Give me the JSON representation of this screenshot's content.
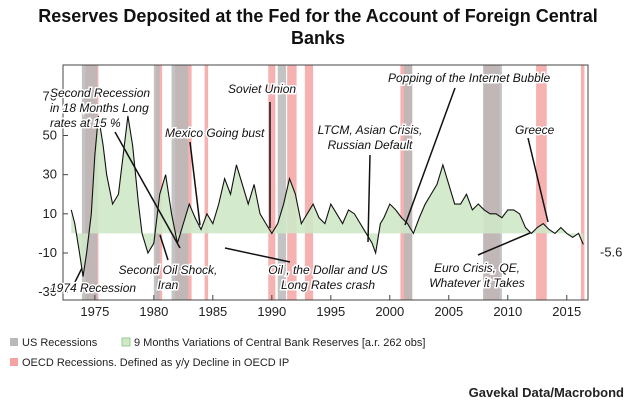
{
  "chart_data": {
    "type": "line",
    "title": [
      "Reserves Deposited at the Fed for the Account of Foreign Central",
      "Banks"
    ],
    "source": "Gavekal Data/Macrobond",
    "x": [
      1973.0,
      1973.3,
      1973.7,
      1974.0,
      1974.3,
      1974.7,
      1975.0,
      1975.3,
      1975.7,
      1976.0,
      1976.5,
      1977.0,
      1977.5,
      1977.8,
      1978.2,
      1978.7,
      1979.0,
      1979.5,
      1980.0,
      1980.5,
      1981.0,
      1981.5,
      1982.0,
      1982.5,
      1983.0,
      1983.5,
      1984.0,
      1984.5,
      1985.0,
      1985.5,
      1986.0,
      1986.5,
      1987.0,
      1987.5,
      1988.0,
      1988.5,
      1989.0,
      1989.5,
      1990.0,
      1990.5,
      1991.0,
      1991.5,
      1992.0,
      1992.5,
      1993.0,
      1993.5,
      1994.0,
      1994.5,
      1995.0,
      1995.5,
      1996.0,
      1996.5,
      1997.0,
      1997.5,
      1998.0,
      1998.5,
      1998.8,
      1999.2,
      1999.5,
      2000.0,
      2000.5,
      2001.0,
      2001.5,
      2002.0,
      2002.5,
      2003.0,
      2003.5,
      2004.0,
      2004.5,
      2005.0,
      2005.5,
      2006.0,
      2006.5,
      2007.0,
      2007.5,
      2008.0,
      2008.5,
      2009.0,
      2009.5,
      2010.0,
      2010.5,
      2011.0,
      2011.5,
      2012.0,
      2012.5,
      2013.0,
      2013.5,
      2014.0,
      2014.5,
      2015.0,
      2015.5,
      2016.0,
      2016.4
    ],
    "series": [
      {
        "name": "9 Months Variations of Central Bank Reserves [a.r. 262 obs]",
        "color": "#111111",
        "fill": "#cfe8c8",
        "values": [
          12,
          5,
          -10,
          -22,
          -10,
          10,
          40,
          60,
          45,
          30,
          15,
          20,
          45,
          60,
          45,
          15,
          0,
          -10,
          -5,
          20,
          30,
          10,
          -5,
          5,
          15,
          8,
          2,
          10,
          5,
          15,
          28,
          20,
          35,
          25,
          15,
          25,
          10,
          5,
          0,
          5,
          15,
          28,
          20,
          5,
          10,
          15,
          8,
          5,
          15,
          10,
          5,
          12,
          10,
          5,
          0,
          -5,
          -10,
          5,
          8,
          15,
          12,
          8,
          5,
          0,
          8,
          15,
          20,
          25,
          35,
          25,
          15,
          15,
          20,
          12,
          15,
          12,
          10,
          10,
          8,
          12,
          12,
          10,
          3,
          0,
          3,
          5,
          2,
          0,
          3,
          0,
          -2,
          0,
          -5.6
        ]
      }
    ],
    "us_recessions_name": "US Recessions",
    "us_color": "#b9b9b9",
    "us_recessions": [
      [
        1973.9,
        1975.2
      ],
      [
        1980.0,
        1980.5
      ],
      [
        1981.5,
        1982.9
      ],
      [
        1990.5,
        1991.2
      ],
      [
        2001.2,
        2001.9
      ],
      [
        2007.9,
        2009.5
      ]
    ],
    "oecd_recessions_name": "OECD Recessions. Defined as y/y Decline in OECD IP",
    "oecd_color": "#f4a3a3",
    "oecd_recessions": [
      [
        1974.2,
        1975.3
      ],
      [
        1980.2,
        1980.7
      ],
      [
        1981.8,
        1983.2
      ],
      [
        1984.3,
        1984.6
      ],
      [
        1989.7,
        1990.3
      ],
      [
        1991.3,
        1992.1
      ],
      [
        1992.8,
        1993.5
      ],
      [
        2000.9,
        2001.9
      ],
      [
        2008.0,
        2009.3
      ],
      [
        2012.4,
        2013.3
      ],
      [
        2016.2,
        2016.5
      ]
    ],
    "annotations": [
      [
        "Second Recession",
        "in 18 Months Long",
        "rates at 15 %"
      ],
      [
        "Mexico Going bust"
      ],
      [
        "Soviet Union"
      ],
      [
        "LTCM, Asian Crisis,",
        "Russian Default"
      ],
      [
        "Popping of the Internet Bubble"
      ],
      [
        "Greece"
      ],
      [
        "Second Oil Shock,",
        "Iran"
      ],
      [
        "Oil , the Dollar and US",
        "Long Rates crash"
      ],
      [
        "1974 Recession"
      ],
      [
        "Euro Crisis, QE,",
        "Whatever it Takes"
      ]
    ],
    "xlim": [
      1972.3,
      2016.8
    ],
    "ylim": [
      -34,
      86
    ],
    "xticks": [
      1975,
      1980,
      1985,
      1990,
      1995,
      2000,
      2005,
      2010,
      2015
    ],
    "yticks": [
      -30,
      -10,
      10,
      30,
      50,
      70
    ],
    "grid": false
  }
}
